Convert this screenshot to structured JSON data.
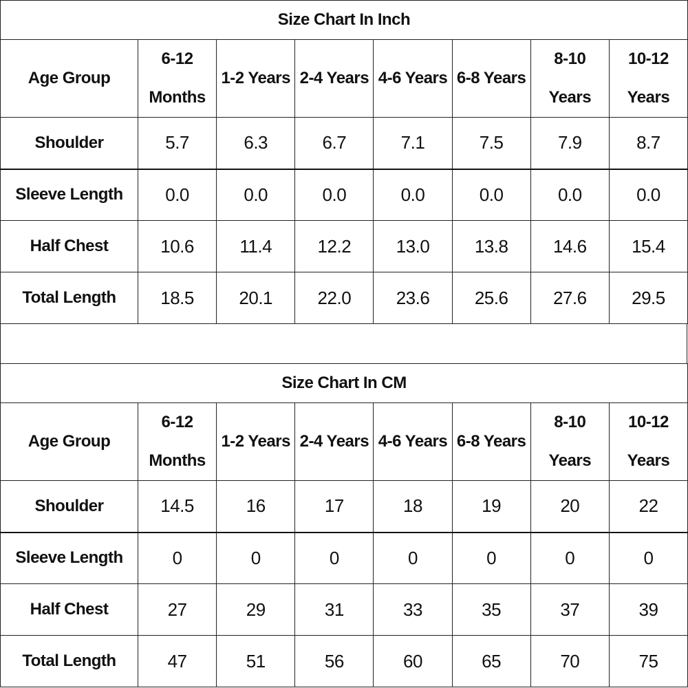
{
  "tables": [
    {
      "title": "Size Chart In Inch",
      "header": [
        "Age Group",
        "6-12 Months",
        "1-2 Years",
        "2-4 Years",
        "4-6 Years",
        "6-8 Years",
        "8-10 Years",
        "10-12 Years"
      ],
      "rows": [
        [
          "Shoulder",
          "5.7",
          "6.3",
          "6.7",
          "7.1",
          "7.5",
          "7.9",
          "8.7"
        ],
        [
          "Sleeve Length",
          "0.0",
          "0.0",
          "0.0",
          "0.0",
          "0.0",
          "0.0",
          "0.0"
        ],
        [
          "Half Chest",
          "10.6",
          "11.4",
          "12.2",
          "13.0",
          "13.8",
          "14.6",
          "15.4"
        ],
        [
          "Total Length",
          "18.5",
          "20.1",
          "22.0",
          "23.6",
          "25.6",
          "27.6",
          "29.5"
        ]
      ]
    },
    {
      "title": "Size Chart In CM",
      "header": [
        "Age Group",
        "6-12 Months",
        "1-2 Years",
        "2-4 Years",
        "4-6 Years",
        "6-8 Years",
        "8-10 Years",
        "10-12 Years"
      ],
      "rows": [
        [
          "Shoulder",
          "14.5",
          "16",
          "17",
          "18",
          "19",
          "20",
          "22"
        ],
        [
          "Sleeve Length",
          "0",
          "0",
          "0",
          "0",
          "0",
          "0",
          "0"
        ],
        [
          "Half Chest",
          "27",
          "29",
          "31",
          "33",
          "35",
          "37",
          "39"
        ],
        [
          "Total Length",
          "47",
          "51",
          "56",
          "60",
          "65",
          "70",
          "75"
        ]
      ]
    }
  ]
}
